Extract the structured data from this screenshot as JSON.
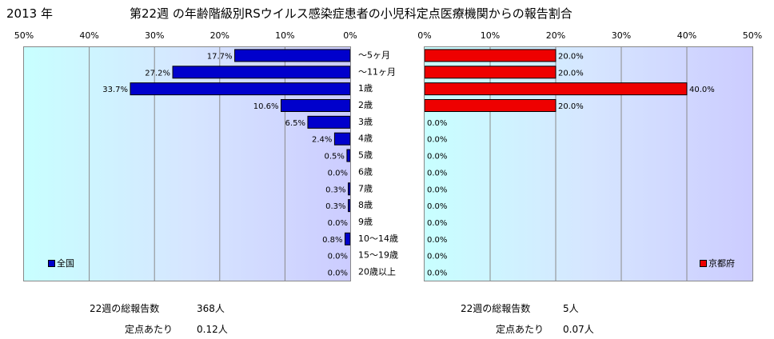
{
  "header": {
    "year": "2013 年",
    "title": "第22週 の年齢階級別RSウイルス感染症患者の小児科定点医療機関からの報告割合"
  },
  "chart_data": [
    {
      "type": "bar",
      "orientation": "horizontal",
      "direction": "leftward",
      "categories": [
        "～5ヶ月",
        "～11ヶ月",
        "1歳",
        "2歳",
        "3歳",
        "4歳",
        "5歳",
        "6歳",
        "7歳",
        "8歳",
        "9歳",
        "10～14歳",
        "15～19歳",
        "20歳以上"
      ],
      "series": [
        {
          "name": "全国",
          "values": [
            17.7,
            27.2,
            33.7,
            10.6,
            6.5,
            2.4,
            0.5,
            0.0,
            0.3,
            0.3,
            0.0,
            0.8,
            0.0,
            0.0
          ],
          "color": "#0000cc"
        }
      ],
      "value_labels": [
        "17.7%",
        "27.2%",
        "33.7%",
        "10.6%",
        "6.5%",
        "2.4%",
        "0.5%",
        "0.0%",
        "0.3%",
        "0.3%",
        "0.0%",
        "0.8%",
        "0.0%",
        "0.0%"
      ],
      "ticks": [
        "50%",
        "40%",
        "30%",
        "20%",
        "10%",
        "0%"
      ],
      "xlim": [
        0,
        50
      ],
      "grid": true,
      "legend": "bottom-left"
    },
    {
      "type": "bar",
      "orientation": "horizontal",
      "direction": "rightward",
      "categories": [
        "～5ヶ月",
        "～11ヶ月",
        "1歳",
        "2歳",
        "3歳",
        "4歳",
        "5歳",
        "6歳",
        "7歳",
        "8歳",
        "9歳",
        "10～14歳",
        "15～19歳",
        "20歳以上"
      ],
      "series": [
        {
          "name": "京都府",
          "values": [
            20.0,
            20.0,
            40.0,
            20.0,
            0.0,
            0.0,
            0.0,
            0.0,
            0.0,
            0.0,
            0.0,
            0.0,
            0.0,
            0.0
          ],
          "color": "#ee0000"
        }
      ],
      "value_labels": [
        "20.0%",
        "20.0%",
        "40.0%",
        "20.0%",
        "0.0%",
        "0.0%",
        "0.0%",
        "0.0%",
        "0.0%",
        "0.0%",
        "0.0%",
        "0.0%",
        "0.0%",
        "0.0%"
      ],
      "ticks": [
        "0%",
        "10%",
        "20%",
        "30%",
        "40%",
        "50%"
      ],
      "xlim": [
        0,
        50
      ],
      "grid": true,
      "legend": "bottom-right"
    }
  ],
  "footer": {
    "left": {
      "total_label": "22週の総報告数",
      "total_value": "368人",
      "per_label": "定点あたり",
      "per_value": "0.12人"
    },
    "right": {
      "total_label": "22週の総報告数",
      "total_value": "5人",
      "per_label": "定点あたり",
      "per_value": "0.07人"
    }
  }
}
